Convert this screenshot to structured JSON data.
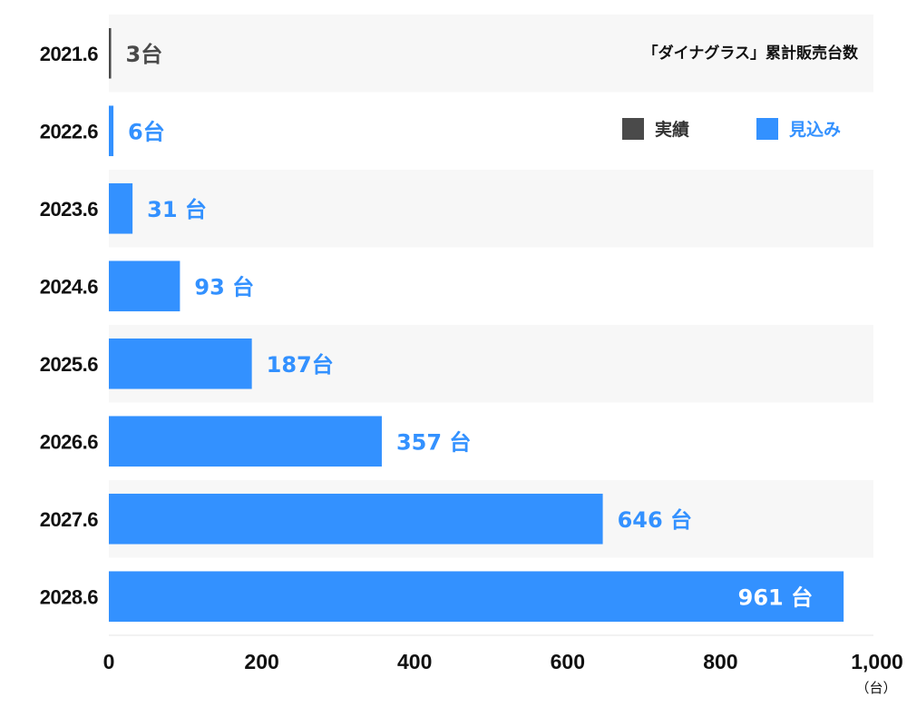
{
  "chart_data": {
    "type": "bar",
    "orientation": "horizontal",
    "title": "「ダイナグラス」累計販売台数",
    "categories": [
      "2021.6",
      "2022.6",
      "2023.6",
      "2024.6",
      "2025.6",
      "2026.6",
      "2027.6",
      "2028.6"
    ],
    "values": [
      3,
      6,
      31,
      93,
      187,
      357,
      646,
      961
    ],
    "value_labels": [
      "3台",
      "6台",
      "31 台",
      "93 台",
      "187台",
      "357 台",
      "646 台",
      "961 台"
    ],
    "bar_status": [
      "actual",
      "forecast",
      "forecast",
      "forecast",
      "forecast",
      "forecast",
      "forecast",
      "forecast"
    ],
    "xlim": [
      0,
      1000
    ],
    "xticks": [
      0,
      200,
      400,
      600,
      800,
      1000
    ],
    "xtick_labels": [
      "0",
      "200",
      "400",
      "600",
      "800",
      "1,000"
    ],
    "x_unit": "（台）",
    "legend": [
      {
        "key": "actual",
        "label": "実績",
        "color": "#4a4a4a"
      },
      {
        "key": "forecast",
        "label": "見込み",
        "color": "#3391ff"
      }
    ],
    "legend_position": "top-right",
    "grid": false,
    "row_band_color": "#f7f7f7"
  }
}
